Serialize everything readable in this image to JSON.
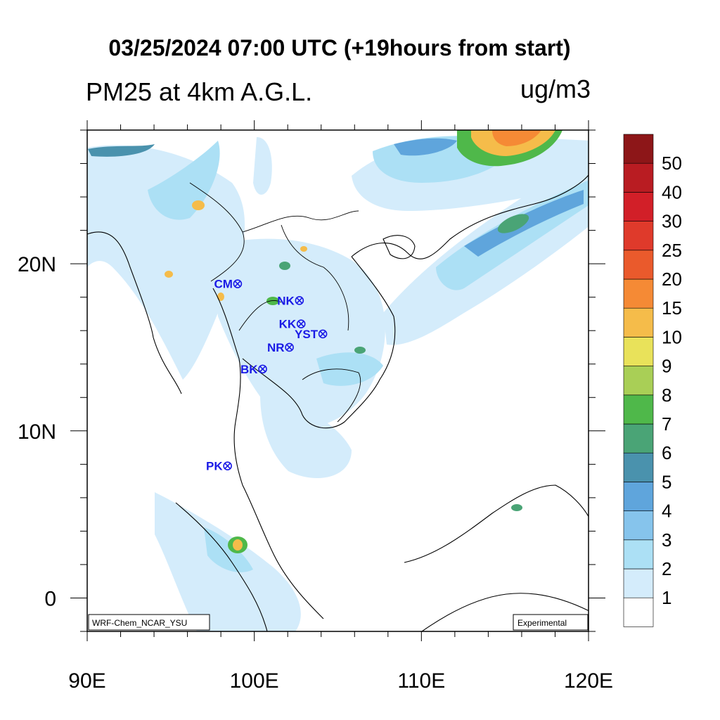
{
  "header": {
    "title": "03/25/2024 07:00 UTC (+19hours from start)",
    "variable": "PM25 at 4km A.G.L.",
    "units": "ug/m3"
  },
  "map": {
    "lon_range": [
      90,
      120
    ],
    "lat_range": [
      -2,
      28
    ],
    "x_ticks": [
      {
        "lon": 90,
        "label": "90E"
      },
      {
        "lon": 100,
        "label": "100E"
      },
      {
        "lon": 110,
        "label": "110E"
      },
      {
        "lon": 120,
        "label": "120E"
      }
    ],
    "y_ticks": [
      {
        "lat": 0,
        "label": "0"
      },
      {
        "lat": 10,
        "label": "10N"
      },
      {
        "lat": 20,
        "label": "20N"
      }
    ],
    "credit_left": "WRF-Chem_NCAR_YSU",
    "credit_right": "Experimental",
    "stations": [
      {
        "label": "CM",
        "lon": 99.0,
        "lat": 18.8
      },
      {
        "label": "NK",
        "lon": 102.7,
        "lat": 17.8
      },
      {
        "label": "KK",
        "lon": 102.8,
        "lat": 16.4
      },
      {
        "label": "YST",
        "lon": 104.1,
        "lat": 15.8
      },
      {
        "label": "NR",
        "lon": 102.1,
        "lat": 15.0
      },
      {
        "label": "BK",
        "lon": 100.5,
        "lat": 13.7
      },
      {
        "label": "PK",
        "lon": 98.4,
        "lat": 7.9
      }
    ]
  },
  "colorbar": {
    "labels": [
      "1",
      "2",
      "3",
      "4",
      "5",
      "6",
      "7",
      "8",
      "9",
      "10",
      "15",
      "20",
      "25",
      "30",
      "40",
      "50"
    ],
    "colors": [
      "#ffffff",
      "#d4ecfb",
      "#ace0f5",
      "#86c4ec",
      "#5fa5dc",
      "#4a92ad",
      "#4aa476",
      "#4fb84a",
      "#a9cf56",
      "#e9e25a",
      "#f5bc4a",
      "#f58a35",
      "#ea5a2c",
      "#df3a2b",
      "#d21f28",
      "#b91c22",
      "#8d1618"
    ]
  }
}
